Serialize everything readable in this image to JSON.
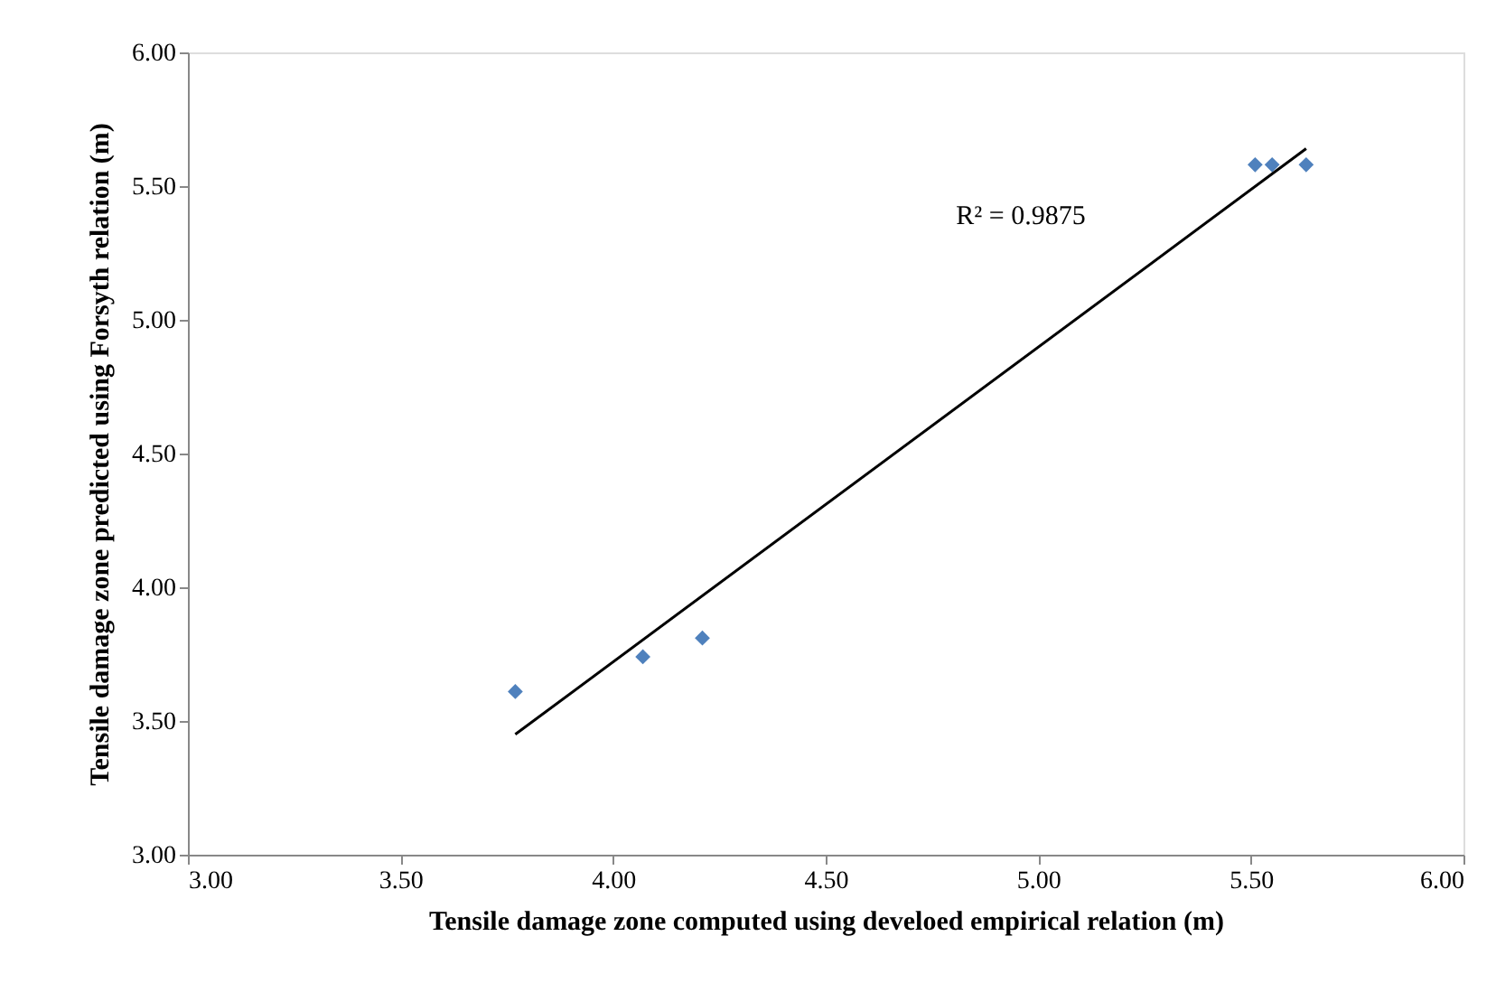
{
  "chart_data": {
    "type": "scatter",
    "xlabel": "Tensile damage zone computed using develoed empirical relation (m)",
    "ylabel": "Tensile damage zone predicted using Forsyth relation (m)",
    "series": [
      {
        "color": "#4f81bd",
        "marker": "diamond",
        "x": [
          3.77,
          4.07,
          4.21,
          5.51,
          5.55,
          5.63
        ],
        "values": [
          3.61,
          3.74,
          3.81,
          5.58,
          5.58,
          5.58
        ]
      },
      {
        "type": "line",
        "color": "#000000",
        "line_style": "solid",
        "marker": "none",
        "x": [
          3.77,
          5.63
        ],
        "values": [
          3.45,
          5.64
        ]
      }
    ],
    "annotations": [
      "R² = 0.9875"
    ],
    "xlim": [
      3.0,
      6.0
    ],
    "xticks": [
      {
        "value": 3.0,
        "label": "3.00"
      },
      {
        "value": 3.5,
        "label": "3.50"
      },
      {
        "value": 4.0,
        "label": "4.00"
      },
      {
        "value": 4.5,
        "label": "4.50"
      },
      {
        "value": 5.0,
        "label": "5.00"
      },
      {
        "value": 5.5,
        "label": "5.50"
      },
      {
        "value": 6.0,
        "label": "6.00"
      }
    ],
    "ylim": [
      3.0,
      6.0
    ],
    "yticks": [
      {
        "value": 3.0,
        "label": "3.00"
      },
      {
        "value": 3.5,
        "label": "3.50"
      },
      {
        "value": 4.0,
        "label": "4.00"
      },
      {
        "value": 4.5,
        "label": "4.50"
      },
      {
        "value": 5.0,
        "label": "5.00"
      },
      {
        "value": 5.5,
        "label": "5.50"
      },
      {
        "value": 6.0,
        "label": "6.00"
      }
    ],
    "grid": false
  }
}
